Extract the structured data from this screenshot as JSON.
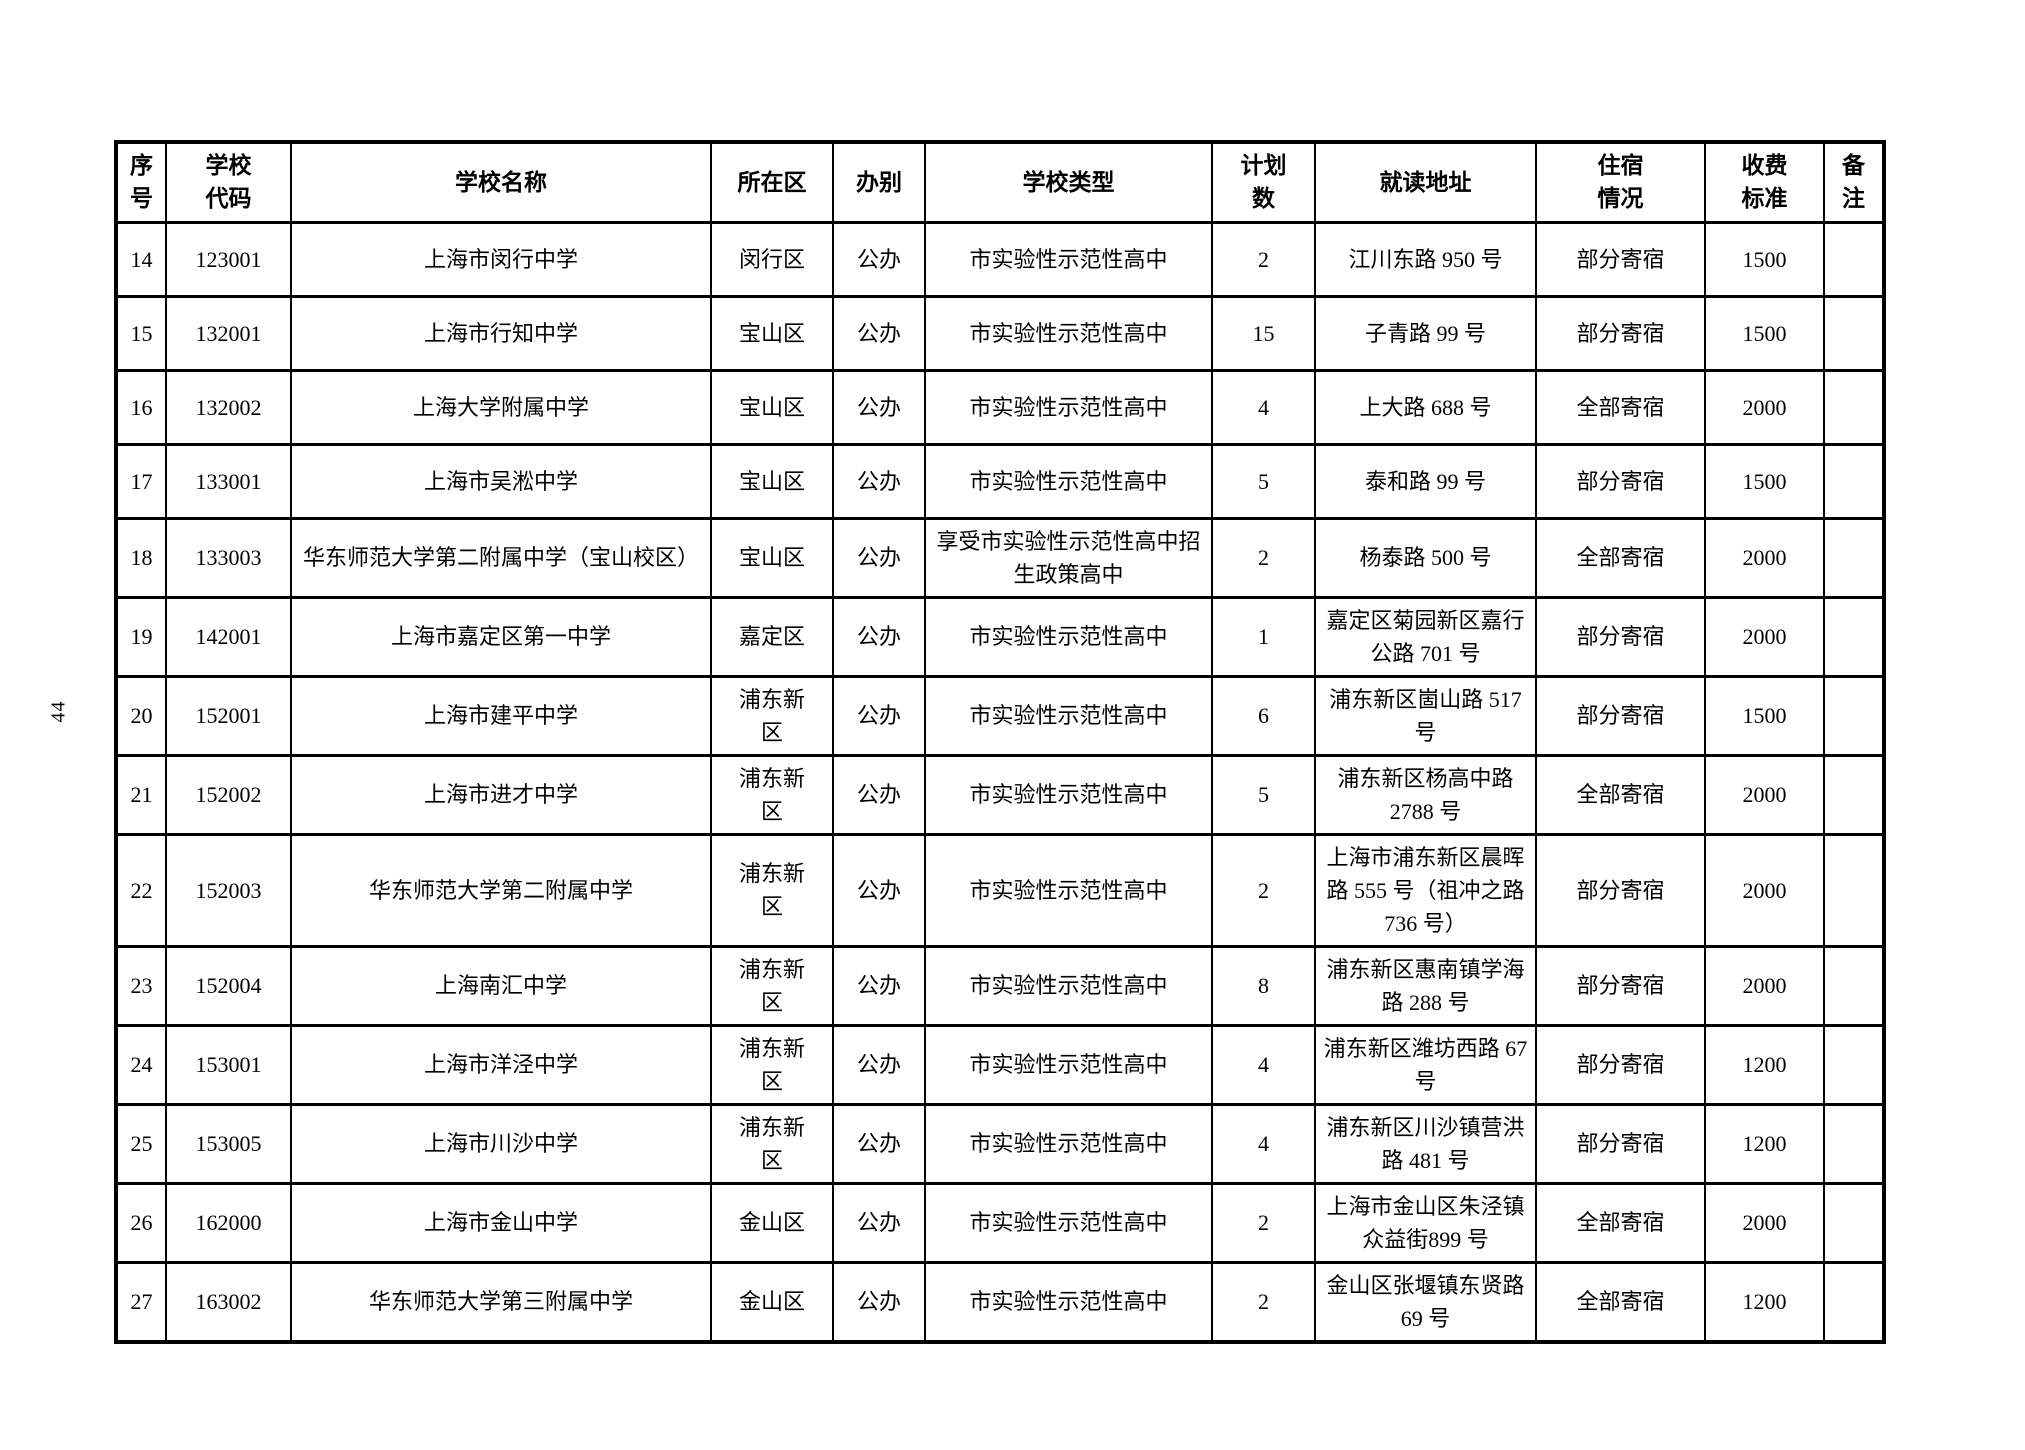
{
  "page": {
    "number": "44",
    "ink_color": "#000000",
    "paper_color": "#ffffff"
  },
  "table": {
    "columns": [
      {
        "key": "seq",
        "label": "序\n号"
      },
      {
        "key": "code",
        "label": "学校\n代码"
      },
      {
        "key": "name",
        "label": "学校名称"
      },
      {
        "key": "district",
        "label": "所在区"
      },
      {
        "key": "ownership",
        "label": "办别"
      },
      {
        "key": "type",
        "label": "学校类型"
      },
      {
        "key": "plan",
        "label": "计划\n数"
      },
      {
        "key": "address",
        "label": "就读地址"
      },
      {
        "key": "boarding",
        "label": "住宿\n情况"
      },
      {
        "key": "fee",
        "label": "收费\n标准"
      },
      {
        "key": "remarks",
        "label": "备\n注"
      }
    ],
    "rows": [
      {
        "seq": "14",
        "code": "123001",
        "name": "上海市闵行中学",
        "district": "闵行区",
        "ownership": "公办",
        "type": "市实验性示范性高中",
        "plan": "2",
        "address": "江川东路 950 号",
        "boarding": "部分寄宿",
        "fee": "1500",
        "remarks": ""
      },
      {
        "seq": "15",
        "code": "132001",
        "name": "上海市行知中学",
        "district": "宝山区",
        "ownership": "公办",
        "type": "市实验性示范性高中",
        "plan": "15",
        "address": "子青路 99 号",
        "boarding": "部分寄宿",
        "fee": "1500",
        "remarks": ""
      },
      {
        "seq": "16",
        "code": "132002",
        "name": "上海大学附属中学",
        "district": "宝山区",
        "ownership": "公办",
        "type": "市实验性示范性高中",
        "plan": "4",
        "address": "上大路 688 号",
        "boarding": "全部寄宿",
        "fee": "2000",
        "remarks": ""
      },
      {
        "seq": "17",
        "code": "133001",
        "name": "上海市吴淞中学",
        "district": "宝山区",
        "ownership": "公办",
        "type": "市实验性示范性高中",
        "plan": "5",
        "address": "泰和路 99 号",
        "boarding": "部分寄宿",
        "fee": "1500",
        "remarks": ""
      },
      {
        "seq": "18",
        "code": "133003",
        "name": "华东师范大学第二附属中学（宝山校区）",
        "district": "宝山区",
        "ownership": "公办",
        "type": "享受市实验性示范性高中招生政策高中",
        "plan": "2",
        "address": "杨泰路 500 号",
        "boarding": "全部寄宿",
        "fee": "2000",
        "remarks": ""
      },
      {
        "seq": "19",
        "code": "142001",
        "name": "上海市嘉定区第一中学",
        "district": "嘉定区",
        "ownership": "公办",
        "type": "市实验性示范性高中",
        "plan": "1",
        "address": "嘉定区菊园新区嘉行公路 701 号",
        "boarding": "部分寄宿",
        "fee": "2000",
        "remarks": ""
      },
      {
        "seq": "20",
        "code": "152001",
        "name": "上海市建平中学",
        "district": "浦东新区",
        "ownership": "公办",
        "type": "市实验性示范性高中",
        "plan": "6",
        "address": "浦东新区崮山路 517 号",
        "boarding": "部分寄宿",
        "fee": "1500",
        "remarks": ""
      },
      {
        "seq": "21",
        "code": "152002",
        "name": "上海市进才中学",
        "district": "浦东新区",
        "ownership": "公办",
        "type": "市实验性示范性高中",
        "plan": "5",
        "address": "浦东新区杨高中路 2788 号",
        "boarding": "全部寄宿",
        "fee": "2000",
        "remarks": ""
      },
      {
        "seq": "22",
        "code": "152003",
        "name": "华东师范大学第二附属中学",
        "district": "浦东新区",
        "ownership": "公办",
        "type": "市实验性示范性高中",
        "plan": "2",
        "address": "上海市浦东新区晨晖路 555 号（祖冲之路 736 号）",
        "boarding": "部分寄宿",
        "fee": "2000",
        "remarks": ""
      },
      {
        "seq": "23",
        "code": "152004",
        "name": "上海南汇中学",
        "district": "浦东新区",
        "ownership": "公办",
        "type": "市实验性示范性高中",
        "plan": "8",
        "address": "浦东新区惠南镇学海路 288 号",
        "boarding": "部分寄宿",
        "fee": "2000",
        "remarks": ""
      },
      {
        "seq": "24",
        "code": "153001",
        "name": "上海市洋泾中学",
        "district": "浦东新区",
        "ownership": "公办",
        "type": "市实验性示范性高中",
        "plan": "4",
        "address": "浦东新区潍坊西路 67 号",
        "boarding": "部分寄宿",
        "fee": "1200",
        "remarks": ""
      },
      {
        "seq": "25",
        "code": "153005",
        "name": "上海市川沙中学",
        "district": "浦东新区",
        "ownership": "公办",
        "type": "市实验性示范性高中",
        "plan": "4",
        "address": "浦东新区川沙镇营洪路 481 号",
        "boarding": "部分寄宿",
        "fee": "1200",
        "remarks": ""
      },
      {
        "seq": "26",
        "code": "162000",
        "name": "上海市金山中学",
        "district": "金山区",
        "ownership": "公办",
        "type": "市实验性示范性高中",
        "plan": "2",
        "address": "上海市金山区朱泾镇众益街899 号",
        "boarding": "全部寄宿",
        "fee": "2000",
        "remarks": ""
      },
      {
        "seq": "27",
        "code": "163002",
        "name": "华东师范大学第三附属中学",
        "district": "金山区",
        "ownership": "公办",
        "type": "市实验性示范性高中",
        "plan": "2",
        "address": "金山区张堰镇东贤路 69 号",
        "boarding": "全部寄宿",
        "fee": "1200",
        "remarks": ""
      }
    ]
  }
}
